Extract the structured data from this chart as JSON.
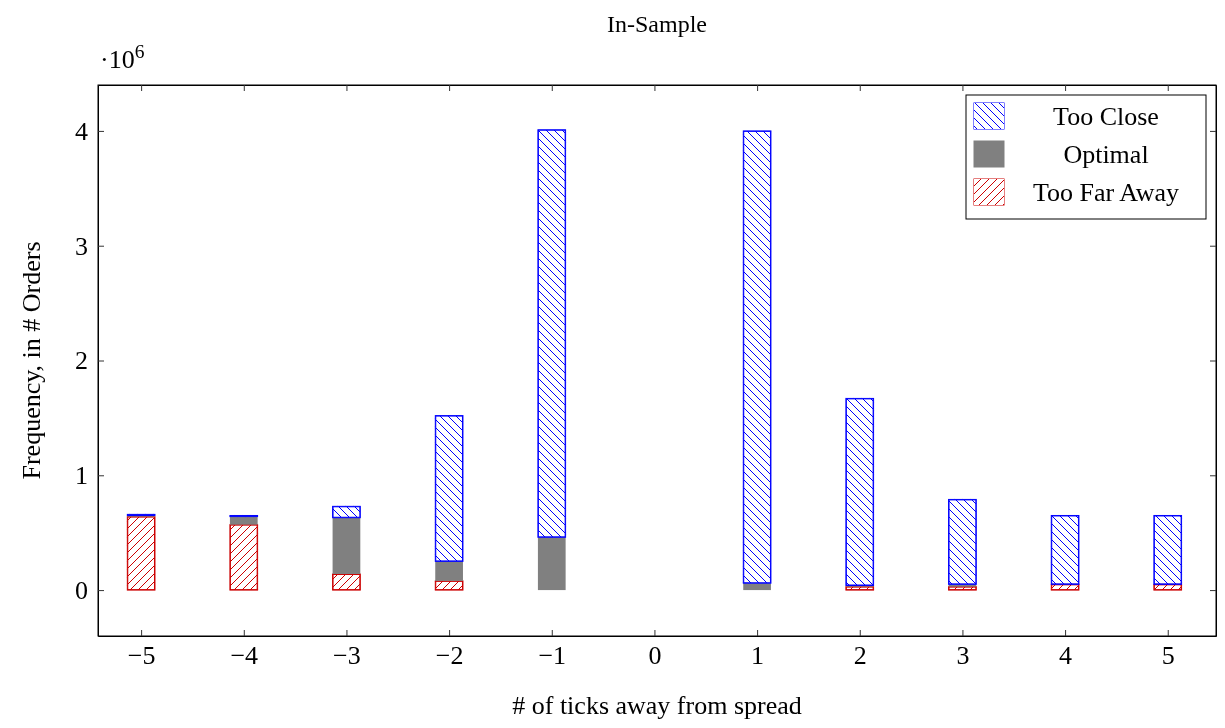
{
  "chart_data": {
    "type": "bar",
    "title": "In-Sample",
    "xlabel": "# of ticks away from spread",
    "ylabel": "Frequency, in # Orders",
    "annotations": [
      "·10$^{6}$"
    ],
    "stacked": true,
    "x": [
      -5,
      -4,
      -3,
      -2,
      -1,
      1,
      2,
      3,
      4,
      5
    ],
    "series": [
      {
        "name": "Too Far Away",
        "color": "#cc0000",
        "values": [
          0.64,
          0.57,
          0.14,
          0.08,
          0,
          0,
          0.03,
          0.03,
          0.05,
          0.05
        ]
      },
      {
        "name": "Optimal",
        "color": "#808080",
        "values": [
          0.01,
          0.07,
          0.49,
          0.17,
          0.46,
          0.06,
          0.01,
          0.02,
          0,
          0
        ]
      },
      {
        "name": "Too Close",
        "color": "#0000ff",
        "values": [
          0.01,
          0.01,
          0.1,
          1.27,
          3.55,
          3.94,
          1.63,
          0.74,
          0.6,
          0.6
        ]
      }
    ],
    "xlim": [
      -5.42,
      5.47
    ],
    "xticks": [
      {
        "value": -5,
        "label": "−5"
      },
      {
        "value": -4,
        "label": "−4"
      },
      {
        "value": -3,
        "label": "−3"
      },
      {
        "value": -2,
        "label": "−2"
      },
      {
        "value": -1,
        "label": "−1"
      },
      0,
      1,
      2,
      3,
      4,
      5
    ],
    "ylim": [
      -0.4,
      4.4
    ],
    "yticks": [
      0,
      1,
      2,
      3,
      4
    ],
    "grid": false,
    "legend": "top right"
  }
}
